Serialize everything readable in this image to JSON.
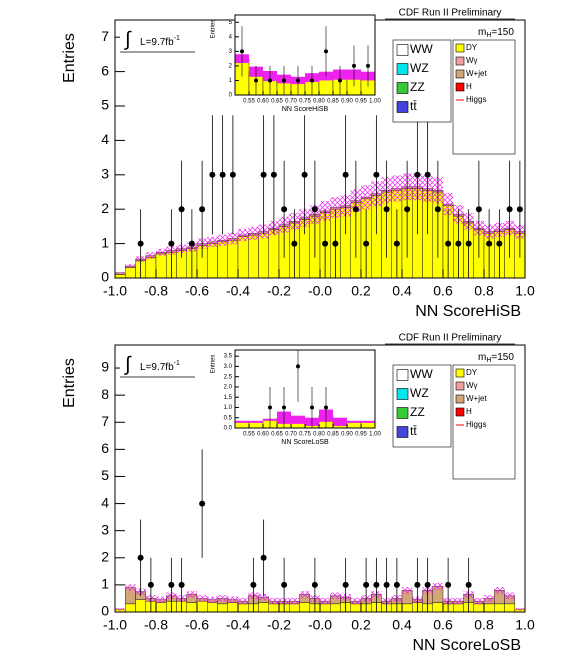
{
  "chart_data": [
    {
      "type": "histogram",
      "title": "CDF Run II Preliminary",
      "xlabel": "NN ScoreHiSB",
      "ylabel": "Entries",
      "lumi": {
        "integral": "∫",
        "text": "L=9.7fb",
        "sup": "-1"
      },
      "mass_label": {
        "symbol": "m",
        "sub": "H",
        "rest": "=150"
      },
      "xlim": [
        -1,
        1
      ],
      "ylim": [
        0,
        7.5
      ],
      "xticks": [
        {
          "value": -1,
          "label": "-1.0"
        },
        -0.8,
        -0.6,
        -0.4,
        -0.2,
        {
          "value": 0,
          "label": "-0.0"
        },
        0.2,
        0.4,
        0.6,
        0.8,
        {
          "value": 1,
          "label": "1.0"
        }
      ],
      "yticks": [
        0,
        1,
        2,
        3,
        4,
        5,
        6,
        7
      ],
      "bins": [
        -1,
        -0.95,
        -0.9,
        -0.85,
        -0.8,
        -0.75,
        -0.7,
        -0.65,
        -0.6,
        -0.55,
        -0.5,
        -0.45,
        -0.4,
        -0.35,
        -0.3,
        -0.25,
        -0.2,
        -0.15,
        -0.1,
        -0.05,
        0,
        0.05,
        0.1,
        0.15,
        0.2,
        0.25,
        0.3,
        0.35,
        0.4,
        0.45,
        0.5,
        0.55,
        0.6,
        0.65,
        0.7,
        0.75,
        0.8,
        0.85,
        0.9,
        0.95,
        1
      ],
      "series": [
        {
          "name": "DY",
          "color": "#ffff00",
          "values": [
            0.1,
            0.3,
            0.5,
            0.6,
            0.7,
            0.75,
            0.8,
            0.85,
            0.95,
            1.0,
            1.05,
            1.1,
            1.2,
            1.25,
            1.3,
            1.4,
            1.5,
            1.6,
            1.7,
            1.8,
            1.9,
            2.0,
            2.05,
            2.2,
            2.3,
            2.4,
            2.5,
            2.55,
            2.6,
            2.6,
            2.55,
            2.5,
            2.1,
            1.8,
            1.6,
            1.4,
            1.3,
            1.35,
            1.4,
            1.3
          ]
        },
        {
          "name": "W+jet",
          "color": "#d2a679",
          "values": [
            0.05,
            0.05,
            0.05,
            0.05,
            0.05,
            0.05,
            0.05,
            0.05,
            0.05,
            0.05,
            0.05,
            0.05,
            0.05,
            0.05,
            0.05,
            0.05,
            0.05,
            0.05,
            0.05,
            0.05,
            0.05,
            0.05,
            0.05,
            0.05,
            0.05,
            0.05,
            0.05,
            0.05,
            0.05,
            0.05,
            0.05,
            0.05,
            0.05,
            0.05,
            0.05,
            0.05,
            0.05,
            0.05,
            0.05,
            0.05
          ]
        }
      ],
      "uncertainty": [
        0.02,
        0.05,
        0.08,
        0.1,
        0.1,
        0.12,
        0.12,
        0.13,
        0.15,
        0.15,
        0.16,
        0.17,
        0.18,
        0.19,
        0.2,
        0.21,
        0.23,
        0.24,
        0.26,
        0.27,
        0.29,
        0.3,
        0.31,
        0.33,
        0.35,
        0.36,
        0.38,
        0.38,
        0.39,
        0.39,
        0.38,
        0.38,
        0.32,
        0.27,
        0.24,
        0.21,
        0.2,
        0.2,
        0.21,
        0.2
      ],
      "data": [
        null,
        null,
        1,
        null,
        null,
        1,
        2,
        1,
        2,
        3,
        3,
        3,
        null,
        null,
        3,
        3,
        2,
        1,
        3,
        2,
        1,
        1,
        3,
        2,
        1,
        3,
        2,
        1,
        2,
        3,
        3,
        2,
        1,
        1,
        1,
        2,
        1,
        1,
        2,
        2
      ],
      "data_errors": [
        null,
        null,
        1,
        null,
        null,
        1,
        1.41,
        1,
        1.41,
        1.73,
        1.73,
        1.73,
        null,
        null,
        1.73,
        1.73,
        1.41,
        1,
        1.73,
        1.41,
        1,
        1,
        1.73,
        1.41,
        1,
        1.73,
        1.41,
        1,
        1.41,
        1.73,
        1.73,
        1.41,
        1,
        1,
        1,
        1.41,
        1,
        1,
        1.41,
        1.41
      ],
      "legend": [
        {
          "name": "WW",
          "color": "#ffffff"
        },
        {
          "name": "WZ",
          "color": "#00e5ee"
        },
        {
          "name": "ZZ",
          "color": "#33cc33"
        },
        {
          "name": "tt̄",
          "color": "#4444dd"
        },
        {
          "name": "DY",
          "color": "#ffff00"
        },
        {
          "name": "Wγ",
          "color": "#f0a0a0"
        },
        {
          "name": "W+jet",
          "color": "#d2a679"
        },
        {
          "name": "H",
          "color": "#ff0000"
        },
        {
          "name": "Higgs",
          "color": "#ff0000",
          "style": "line"
        }
      ],
      "inset": {
        "xlabel": "NN ScoreHiSB",
        "ylabel": "Entries",
        "xlim": [
          0.5,
          1.0
        ],
        "ylim": [
          0,
          5.5
        ],
        "xticks": [
          0.55,
          {
            "value": 0.6,
            "label": "0.60"
          },
          0.65,
          {
            "value": 0.7,
            "label": "0.70"
          },
          0.75,
          {
            "value": 0.8,
            "label": "0.80"
          },
          0.85,
          {
            "value": 0.9,
            "label": "0.90"
          },
          0.95,
          {
            "value": 1,
            "label": "1.00"
          }
        ],
        "yticks": [
          0,
          1,
          2,
          3,
          4,
          5
        ],
        "bins": [
          0.5,
          0.55,
          0.6,
          0.65,
          0.7,
          0.75,
          0.8,
          0.85,
          0.9,
          0.95,
          1.0
        ],
        "series": [
          {
            "name": "DY",
            "color": "#ffff00",
            "values": [
              2.5,
              1.6,
              1.3,
              1.1,
              1.0,
              1.2,
              1.3,
              1.4,
              1.4,
              1.3
            ]
          }
        ],
        "uncertainty": [
          0.3,
          0.35,
          0.35,
          0.3,
          0.25,
          0.3,
          0.3,
          0.35,
          0.35,
          0.3
        ],
        "data": [
          3,
          1,
          1,
          1,
          1,
          1,
          3,
          1,
          2,
          2
        ],
        "data_errors": [
          1.73,
          1,
          1,
          1,
          1,
          1,
          1.73,
          1,
          1.41,
          1.41
        ]
      }
    },
    {
      "type": "histogram",
      "title": "CDF Run II Preliminary",
      "xlabel": "NN ScoreLoSB",
      "ylabel": "Entries",
      "lumi": {
        "integral": "∫",
        "text": "L=9.7fb",
        "sup": "-1"
      },
      "mass_label": {
        "symbol": "m",
        "sub": "H",
        "rest": "=150"
      },
      "xlim": [
        -1,
        1
      ],
      "ylim": [
        0,
        9.85
      ],
      "xticks": [
        {
          "value": -1,
          "label": "-1.0"
        },
        -0.8,
        -0.6,
        -0.4,
        -0.2,
        {
          "value": 0,
          "label": "-0.0"
        },
        0.2,
        0.4,
        0.6,
        0.8,
        {
          "value": 1,
          "label": "1.0"
        }
      ],
      "yticks": [
        0,
        1,
        2,
        3,
        4,
        5,
        6,
        7,
        8,
        9
      ],
      "bins": [
        -1,
        -0.95,
        -0.9,
        -0.85,
        -0.8,
        -0.75,
        -0.7,
        -0.65,
        -0.6,
        -0.55,
        -0.5,
        -0.45,
        -0.4,
        -0.35,
        -0.3,
        -0.25,
        -0.2,
        -0.15,
        -0.1,
        -0.05,
        0,
        0.05,
        0.1,
        0.15,
        0.2,
        0.25,
        0.3,
        0.35,
        0.4,
        0.45,
        0.5,
        0.55,
        0.6,
        0.65,
        0.7,
        0.75,
        0.8,
        0.85,
        0.9,
        0.95,
        1
      ],
      "series": [
        {
          "name": "DY",
          "color": "#ffff00",
          "values": [
            0.1,
            0.3,
            0.45,
            0.4,
            0.35,
            0.4,
            0.4,
            0.35,
            0.4,
            0.35,
            0.3,
            0.35,
            0.3,
            0.3,
            0.35,
            0.3,
            0.3,
            0.3,
            0.35,
            0.3,
            0.3,
            0.3,
            0.35,
            0.3,
            0.3,
            0.35,
            0.3,
            0.3,
            0.3,
            0.35,
            0.3,
            0.35,
            0.3,
            0.3,
            0.35,
            0.3,
            0.3,
            0.3,
            0.3,
            0.1
          ]
        },
        {
          "name": "W+jet",
          "color": "#d2a679",
          "values": [
            0,
            0.6,
            0.3,
            0.1,
            0.1,
            0.2,
            0.1,
            0.3,
            0.1,
            0.1,
            0.2,
            0.1,
            0.1,
            0.3,
            0.2,
            0.1,
            0.1,
            0.1,
            0.3,
            0.2,
            0.1,
            0.3,
            0.2,
            0.1,
            0.2,
            0.3,
            0.1,
            0.2,
            0.5,
            0.1,
            0.5,
            0.6,
            0.1,
            0.1,
            0.3,
            0.1,
            0.2,
            0.5,
            0.3,
            0
          ]
        }
      ],
      "uncertainty": [
        0.05,
        0.12,
        0.12,
        0.12,
        0.12,
        0.12,
        0.12,
        0.12,
        0.12,
        0.12,
        0.12,
        0.12,
        0.12,
        0.12,
        0.12,
        0.12,
        0.12,
        0.12,
        0.12,
        0.12,
        0.12,
        0.12,
        0.12,
        0.12,
        0.12,
        0.12,
        0.12,
        0.12,
        0.12,
        0.12,
        0.12,
        0.12,
        0.12,
        0.12,
        0.12,
        0.12,
        0.12,
        0.12,
        0.12,
        0.05
      ],
      "data": [
        null,
        null,
        2,
        1,
        null,
        1,
        1,
        null,
        4,
        null,
        null,
        null,
        null,
        1,
        2,
        null,
        1,
        null,
        null,
        1,
        null,
        null,
        1,
        null,
        1,
        1,
        1,
        1,
        null,
        1,
        1,
        null,
        1,
        null,
        1,
        null,
        null,
        null,
        null,
        null
      ],
      "data_errors": [
        null,
        null,
        1.41,
        1,
        null,
        1,
        1,
        null,
        2,
        null,
        null,
        null,
        null,
        1,
        1.41,
        null,
        1,
        null,
        null,
        1,
        null,
        null,
        1,
        null,
        1,
        1,
        1,
        1,
        null,
        1,
        1,
        null,
        1,
        null,
        1,
        null,
        null,
        null,
        null,
        null
      ],
      "legend": [
        {
          "name": "WW",
          "color": "#ffffff"
        },
        {
          "name": "WZ",
          "color": "#00e5ee"
        },
        {
          "name": "ZZ",
          "color": "#33cc33"
        },
        {
          "name": "tt̄",
          "color": "#4444dd"
        },
        {
          "name": "DY",
          "color": "#ffff00"
        },
        {
          "name": "Wγ",
          "color": "#f0a0a0"
        },
        {
          "name": "W+jet",
          "color": "#d2a679"
        },
        {
          "name": "H",
          "color": "#ff0000"
        },
        {
          "name": "Higgs",
          "color": "#ff0000",
          "style": "line"
        }
      ],
      "inset": {
        "xlabel": "NN ScoreLoSB",
        "ylabel": "Entries",
        "xlim": [
          0.5,
          1.0
        ],
        "ylim": [
          0,
          3.8
        ],
        "xticks": [
          0.55,
          {
            "value": 0.6,
            "label": "0.60"
          },
          0.65,
          {
            "value": 0.7,
            "label": "0.70"
          },
          0.75,
          {
            "value": 0.8,
            "label": "0.80"
          },
          0.85,
          {
            "value": 0.9,
            "label": "0.90"
          },
          0.95,
          {
            "value": 1,
            "label": "1.00"
          }
        ],
        "yticks": [
          {
            "value": 0,
            "label": "0.0"
          },
          0.5,
          {
            "value": 1,
            "label": "1.0"
          },
          1.5,
          {
            "value": 2,
            "label": "2.0"
          },
          2.5,
          {
            "value": 3,
            "label": "3.0"
          },
          3.5
        ],
        "bins": [
          0.5,
          0.55,
          0.6,
          0.65,
          0.7,
          0.75,
          0.8,
          0.85,
          0.9,
          0.95,
          1.0
        ],
        "series": [
          {
            "name": "DY",
            "color": "#ffff00",
            "values": [
              0.3,
              0.3,
              0.4,
              0.5,
              0.4,
              0.3,
              0.6,
              0.3,
              0.3,
              0.3
            ]
          }
        ],
        "uncertainty": [
          0.05,
          0.05,
          0.05,
          0.3,
          0.2,
          0.2,
          0.3,
          0.2,
          0.05,
          0.05
        ],
        "data": [
          null,
          null,
          1,
          1,
          3,
          1,
          1,
          null,
          null,
          null
        ],
        "data_errors": [
          null,
          null,
          1,
          1,
          1.73,
          1,
          1,
          null,
          null,
          null
        ]
      }
    }
  ]
}
